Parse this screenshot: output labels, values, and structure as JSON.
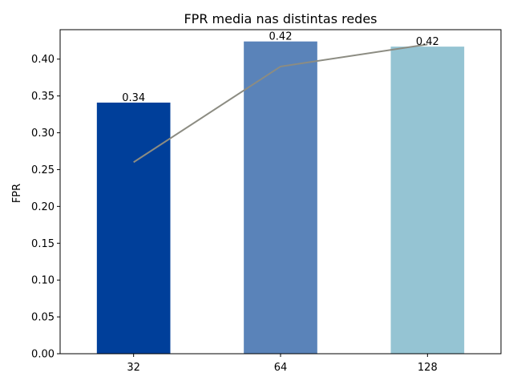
{
  "chart_data": {
    "type": "bar",
    "title": "FPR media nas distintas redes",
    "xlabel": "",
    "ylabel": "FPR",
    "categories": [
      "32",
      "64",
      "128"
    ],
    "ylim": [
      0,
      0.44
    ],
    "yticks": [
      0.0,
      0.05,
      0.1,
      0.15,
      0.2,
      0.25,
      0.3,
      0.35,
      0.4
    ],
    "ytick_labels": [
      "0.00",
      "0.05",
      "0.10",
      "0.15",
      "0.20",
      "0.25",
      "0.30",
      "0.35",
      "0.40"
    ],
    "grid": false,
    "bars": {
      "values": [
        0.341,
        0.424,
        0.417
      ],
      "labels": [
        "0.34",
        "0.42",
        "0.42"
      ],
      "colors": [
        "#003f9a",
        "#5a83b9",
        "#95c4d3"
      ]
    },
    "line": {
      "values": [
        0.26,
        0.39,
        0.42
      ],
      "color": "#8c8c82"
    }
  }
}
